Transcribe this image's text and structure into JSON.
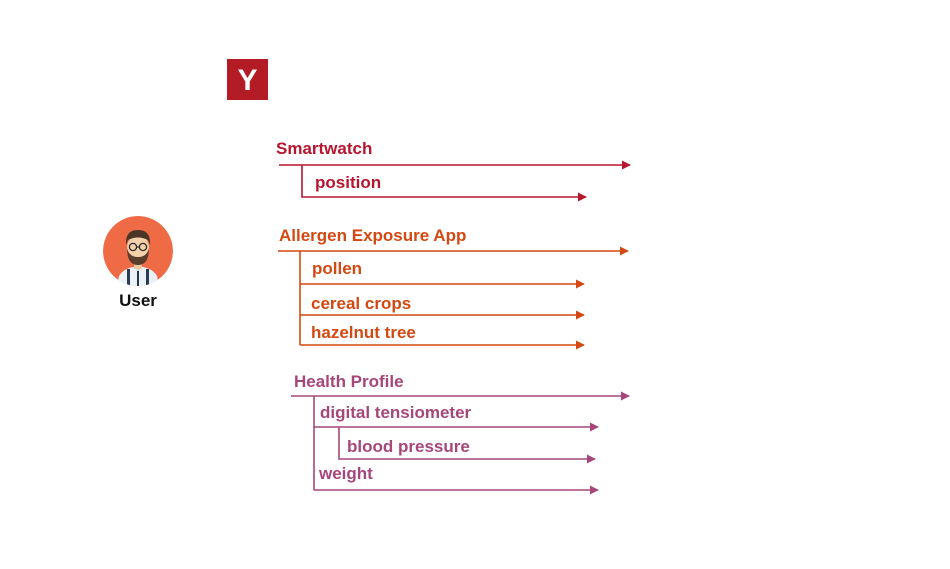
{
  "logo": {
    "letter": "Y",
    "color": "#b31b25"
  },
  "user": {
    "label": "User",
    "icon": "user-avatar-icon"
  },
  "colors": {
    "smartwatch": "#b8152e",
    "allergen": "#d44811",
    "health": "#a7467a"
  },
  "flows": {
    "smartwatch": {
      "label": "Smartwatch",
      "children": [
        "position"
      ]
    },
    "allergen": {
      "label": "Allergen Exposure App",
      "children": [
        "pollen",
        "cereal crops",
        "hazelnut tree"
      ]
    },
    "health": {
      "label": "Health Profile",
      "children": [
        {
          "label": "digital tensiometer",
          "children": [
            "blood pressure"
          ]
        },
        {
          "label": "weight"
        }
      ]
    }
  }
}
